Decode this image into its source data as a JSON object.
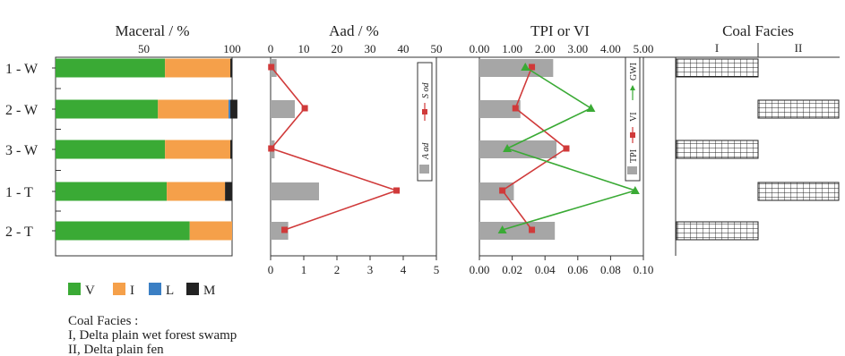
{
  "chart_data": [
    {
      "type": "bar",
      "stacked": true,
      "orientation": "horizontal",
      "title": "Maceral / %",
      "categories": [
        "1 - W",
        "2 - W",
        "3 - W",
        "1 - T",
        "2 - T"
      ],
      "xlim": [
        0,
        100
      ],
      "xticks": [
        "50",
        "100"
      ],
      "series": [
        {
          "name": "V",
          "color": "#3aaa35",
          "values": [
            62,
            58,
            62,
            63,
            76
          ]
        },
        {
          "name": "I",
          "color": "#f5a04a",
          "values": [
            37,
            40,
            37,
            33,
            24
          ]
        },
        {
          "name": "L",
          "color": "#3b7fc4",
          "values": [
            0,
            1,
            0,
            0,
            0
          ]
        },
        {
          "name": "M",
          "color": "#222222",
          "values": [
            1,
            4,
            1,
            4,
            0
          ]
        }
      ]
    },
    {
      "type": "bar+line",
      "title": "Aad / %",
      "categories": [
        "1 - W",
        "2 - W",
        "3 - W",
        "1 - T",
        "2 - T"
      ],
      "top_axis": {
        "label": "Aad / %",
        "lim": [
          0,
          50
        ],
        "ticks": [
          "0",
          "10",
          "20",
          "30",
          "40",
          "50"
        ]
      },
      "bottom_axis": {
        "label": "",
        "lim": [
          0,
          5
        ],
        "ticks": [
          "0",
          "1",
          "2",
          "3",
          "4",
          "5"
        ]
      },
      "series": [
        {
          "name": "A ad",
          "kind": "bar",
          "axis": "top",
          "color": "#a6a6a6",
          "values": [
            1.8,
            7.3,
            1.2,
            14.6,
            5.3
          ]
        },
        {
          "name": "S od",
          "kind": "line",
          "axis": "bottom",
          "color": "#d03a3a",
          "values": [
            0.02,
            1.03,
            0.02,
            3.8,
            0.42
          ]
        }
      ]
    },
    {
      "type": "bar+line",
      "title": "TPI or VI",
      "categories": [
        "1 - W",
        "2 - W",
        "3 - W",
        "1 - T",
        "2 - T"
      ],
      "top_axis": {
        "label": "TPI or VI",
        "lim": [
          0,
          5
        ],
        "ticks": [
          "0.00",
          "1.00",
          "2.00",
          "3.00",
          "4.00",
          "5.00"
        ]
      },
      "bottom_axis": {
        "label": "",
        "lim": [
          0,
          0.1
        ],
        "ticks": [
          "0.00",
          "0.02",
          "0.04",
          "0.06",
          "0.08",
          "0.10"
        ]
      },
      "series": [
        {
          "name": "TPI",
          "kind": "bar",
          "axis": "top",
          "color": "#a6a6a6",
          "values": [
            2.25,
            1.25,
            2.35,
            1.05,
            2.3
          ]
        },
        {
          "name": "VI",
          "kind": "line",
          "axis": "top",
          "color": "#d03a3a",
          "values": [
            1.6,
            1.1,
            2.65,
            0.7,
            1.6
          ]
        },
        {
          "name": "GWI",
          "kind": "line",
          "axis": "bottom",
          "color": "#3aaa35",
          "values": [
            0.028,
            0.068,
            0.017,
            0.095,
            0.014
          ]
        }
      ]
    },
    {
      "type": "table",
      "title": "Coal Facies",
      "columns": [
        "I",
        "II"
      ],
      "categories": [
        "1 - W",
        "2 - W",
        "3 - W",
        "1 - T",
        "2 - T"
      ],
      "facies": [
        "I",
        "II",
        "I",
        "II",
        "I"
      ]
    }
  ],
  "legend": [
    {
      "name": "V",
      "color": "#3aaa35"
    },
    {
      "name": "I",
      "color": "#f5a04a"
    },
    {
      "name": "L",
      "color": "#3b7fc4"
    },
    {
      "name": "M",
      "color": "#222222"
    }
  ],
  "notes": {
    "heading": "Coal Facies :",
    "line1": "I, Delta plain wet forest swamp",
    "line2": "II, Delta plain fen"
  }
}
